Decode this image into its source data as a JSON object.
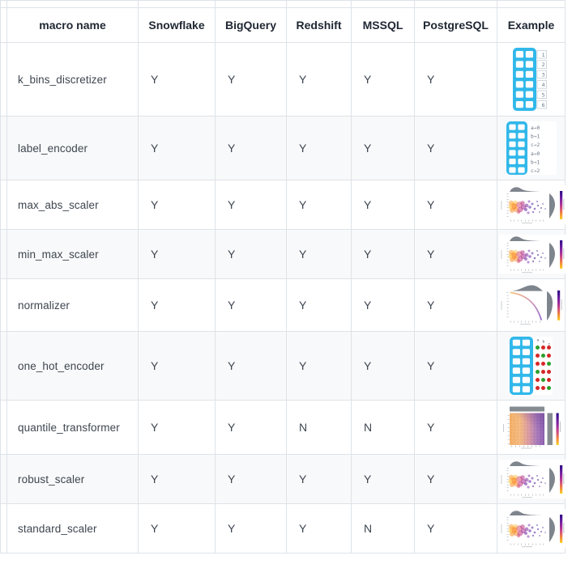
{
  "table": {
    "columns": [
      {
        "label": "macro name",
        "key": "macro"
      },
      {
        "label": "Snowflake",
        "key": "snowflake"
      },
      {
        "label": "BigQuery",
        "key": "bigquery"
      },
      {
        "label": "Redshift",
        "key": "redshift"
      },
      {
        "label": "MSSQL",
        "key": "mssql"
      },
      {
        "label": "PostgreSQL",
        "key": "postgresql"
      },
      {
        "label": "Example",
        "key": "example"
      }
    ],
    "db_keys": [
      "snowflake",
      "bigquery",
      "redshift",
      "mssql",
      "postgresql"
    ],
    "rows": [
      {
        "macro": "k_bins_discretizer",
        "snowflake": "Y",
        "bigquery": "Y",
        "redshift": "Y",
        "mssql": "Y",
        "postgresql": "Y",
        "example_icon": "binned-table-icon"
      },
      {
        "macro": "label_encoder",
        "snowflake": "Y",
        "bigquery": "Y",
        "redshift": "Y",
        "mssql": "Y",
        "postgresql": "Y",
        "example_icon": "label-encoded-table-icon"
      },
      {
        "macro": "max_abs_scaler",
        "snowflake": "Y",
        "bigquery": "Y",
        "redshift": "Y",
        "mssql": "Y",
        "postgresql": "Y",
        "example_icon": "jointplot-scatter-icon"
      },
      {
        "macro": "min_max_scaler",
        "snowflake": "Y",
        "bigquery": "Y",
        "redshift": "Y",
        "mssql": "Y",
        "postgresql": "Y",
        "example_icon": "jointplot-scatter-icon"
      },
      {
        "macro": "normalizer",
        "snowflake": "Y",
        "bigquery": "Y",
        "redshift": "Y",
        "mssql": "Y",
        "postgresql": "Y",
        "example_icon": "normalizer-curve-icon"
      },
      {
        "macro": "one_hot_encoder",
        "snowflake": "Y",
        "bigquery": "Y",
        "redshift": "Y",
        "mssql": "Y",
        "postgresql": "Y",
        "example_icon": "one-hot-table-icon"
      },
      {
        "macro": "quantile_transformer",
        "snowflake": "Y",
        "bigquery": "Y",
        "redshift": "N",
        "mssql": "N",
        "postgresql": "Y",
        "example_icon": "quantile-heatmap-icon"
      },
      {
        "macro": "robust_scaler",
        "snowflake": "Y",
        "bigquery": "Y",
        "redshift": "Y",
        "mssql": "Y",
        "postgresql": "Y",
        "example_icon": "jointplot-scatter-icon"
      },
      {
        "macro": "standard_scaler",
        "snowflake": "Y",
        "bigquery": "Y",
        "redshift": "Y",
        "mssql": "N",
        "postgresql": "Y",
        "example_icon": "jointplot-scatter-icon"
      }
    ]
  },
  "icons": {
    "bin_labels": [
      "1",
      "2",
      "3",
      "4",
      "5",
      "6"
    ],
    "label_encoder_labels": [
      "a→0",
      "b→1",
      "c→2",
      "a→0",
      "b→1",
      "c→2"
    ],
    "one_hot_column_labels": [
      "a",
      "b",
      "c"
    ]
  },
  "colors": {
    "table_blue": "#31b8ea",
    "dot_green": "#2ca02c",
    "dot_red": "#d62728",
    "density_gray": "#7f858d",
    "bar_gray": "#868b92",
    "border": "#dee3e8",
    "alt_row_bg": "#f8f9fa",
    "header_text": "#1f2733",
    "body_text": "#3e4650",
    "icon_label_gray": "#6b7684",
    "colorbar_top": "#2b0a85",
    "colorbar_mid": "#d4527c",
    "colorbar_bottom": "#fbd225"
  }
}
